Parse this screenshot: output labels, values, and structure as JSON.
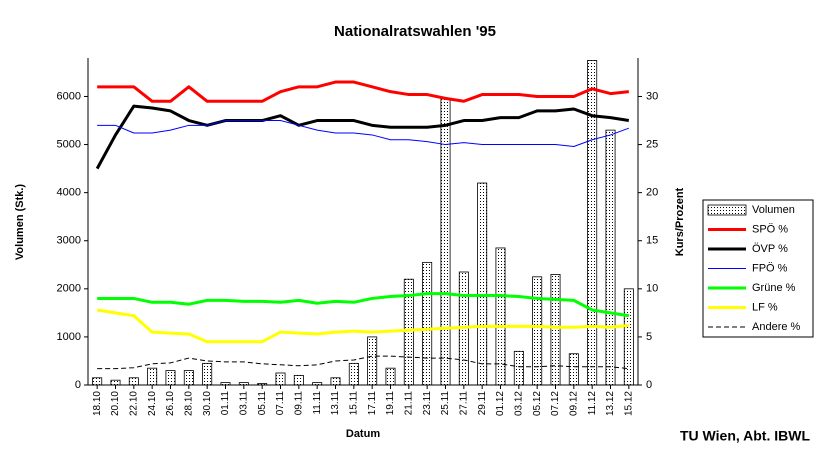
{
  "chart_data": {
    "type": "combo",
    "title": "Nationalratswahlen '95",
    "footer": "TU Wien, Abt. IBWL",
    "xlabel": "Datum",
    "ylabel": "Volumen (Stk.)",
    "y2label": "Kurs/Prozent",
    "categories": [
      "18.10",
      "20.10",
      "22.10",
      "24.10",
      "26.10",
      "28.10",
      "30.10",
      "01.11",
      "03.11",
      "05.11",
      "07.11",
      "09.11",
      "11.11",
      "13.11",
      "15.11",
      "17.11",
      "19.11",
      "21.11",
      "23.11",
      "25.11",
      "27.11",
      "29.11",
      "01.12",
      "03.12",
      "05.12",
      "07.12",
      "09.12",
      "11.12",
      "13.12",
      "15.12"
    ],
    "ylim": [
      0,
      6800
    ],
    "yticks": [
      0,
      1000,
      2000,
      3000,
      4000,
      5000,
      6000
    ],
    "y2lim": [
      0,
      34
    ],
    "y2ticks": [
      0,
      5,
      10,
      15,
      20,
      25,
      30
    ],
    "series": [
      {
        "name": "Volumen",
        "type": "bar",
        "axis": "y",
        "color": "#ffffff",
        "values": [
          150,
          100,
          150,
          350,
          300,
          300,
          450,
          50,
          50,
          30,
          250,
          200,
          50,
          150,
          450,
          1000,
          350,
          2200,
          2550,
          5950,
          2350,
          4200,
          2850,
          700,
          2250,
          2300,
          650,
          6750,
          5300,
          2000
        ]
      },
      {
        "name": "SPÖ %",
        "type": "line",
        "axis": "y2",
        "color": "#ff0000",
        "width": 3,
        "values": [
          31,
          31,
          31,
          29.5,
          29.5,
          31,
          29.5,
          29.5,
          29.5,
          29.5,
          30.5,
          31,
          31,
          31.5,
          31.5,
          31,
          30.5,
          30.2,
          30.2,
          29.8,
          29.5,
          30.2,
          30.2,
          30.2,
          30,
          30,
          30,
          30.8,
          30.3,
          30.5
        ]
      },
      {
        "name": "ÖVP %",
        "type": "line",
        "axis": "y2",
        "color": "#000000",
        "width": 3,
        "values": [
          22.5,
          26,
          29,
          28.8,
          28.5,
          27.5,
          27,
          27.5,
          27.5,
          27.5,
          28,
          27,
          27.5,
          27.5,
          27.5,
          27,
          26.8,
          26.8,
          26.8,
          27,
          27.5,
          27.5,
          27.8,
          27.8,
          28.5,
          28.5,
          28.7,
          28,
          27.8,
          27.5
        ]
      },
      {
        "name": "FPÖ %",
        "type": "line",
        "axis": "y2",
        "color": "#0000ff",
        "width": 1,
        "values": [
          27,
          27,
          26.2,
          26.2,
          26.5,
          27,
          27,
          27.5,
          27.5,
          27.5,
          27.5,
          27,
          26.5,
          26.2,
          26.2,
          26,
          25.5,
          25.5,
          25.3,
          25,
          25.2,
          25,
          25,
          25,
          25,
          25,
          24.8,
          25.5,
          26,
          26.7
        ]
      },
      {
        "name": "Grüne %",
        "type": "line",
        "axis": "y2",
        "color": "#00ff00",
        "width": 3,
        "values": [
          9,
          9,
          9,
          8.6,
          8.6,
          8.4,
          8.8,
          8.8,
          8.7,
          8.7,
          8.6,
          8.8,
          8.5,
          8.7,
          8.6,
          9,
          9.2,
          9.3,
          9.5,
          9.5,
          9.3,
          9.3,
          9.3,
          9.2,
          9,
          8.9,
          8.8,
          7.8,
          7.5,
          7.2
        ]
      },
      {
        "name": "LF %",
        "type": "line",
        "axis": "y2",
        "color": "#ffff00",
        "width": 3,
        "values": [
          7.8,
          7.5,
          7.2,
          5.5,
          5.4,
          5.3,
          4.5,
          4.5,
          4.5,
          4.5,
          5.5,
          5.4,
          5.3,
          5.5,
          5.6,
          5.5,
          5.6,
          5.7,
          5.8,
          5.9,
          6,
          6.1,
          6.1,
          6.1,
          6.1,
          6,
          6,
          6.1,
          6,
          6.2
        ]
      },
      {
        "name": "Andere %",
        "type": "line",
        "axis": "y2",
        "color": "#000000",
        "width": 1,
        "dash": true,
        "values": [
          1.7,
          1.7,
          1.8,
          2.2,
          2.3,
          2.8,
          2.5,
          2.4,
          2.4,
          2.2,
          2.1,
          2,
          2.1,
          2.5,
          2.6,
          3,
          3,
          2.9,
          2.8,
          2.8,
          2.6,
          2.2,
          2.2,
          1.9,
          1.9,
          2,
          1.9,
          1.9,
          1.9,
          1.7
        ]
      }
    ]
  }
}
